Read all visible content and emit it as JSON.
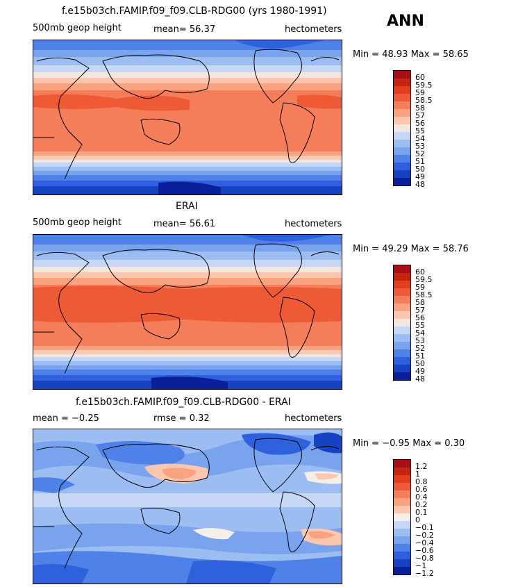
{
  "season": "ANN",
  "panels": [
    {
      "title": "f.e15b03ch.FAMIP.f09_f09.CLB-RDG00 (yrs 1980-1991)",
      "left_label": "500mb geop height",
      "center_label": "mean=  56.37",
      "right_label": "hectometers",
      "stats": "Min =  48.93  Max =  58.65",
      "colorbar_labels": [
        "60",
        "59.5",
        "59",
        "58.5",
        "58",
        "57",
        "56",
        "55",
        "54",
        "53",
        "52",
        "51",
        "50",
        "49",
        "48"
      ],
      "colorbar_colors": [
        "#a50f15",
        "#c4250c",
        "#e03e1c",
        "#ee5a36",
        "#f47d5a",
        "#f9a381",
        "#fbc7ae",
        "#f3e6de",
        "#c4d7f5",
        "#9cbdf2",
        "#7aa3ee",
        "#4f82e8",
        "#2f61dc",
        "#1642c4",
        "#0a1f9a"
      ]
    },
    {
      "title": "ERAI",
      "left_label": "500mb geop height",
      "center_label": "mean=  56.61",
      "right_label": "hectometers",
      "stats": "Min =  49.29  Max =  58.76",
      "colorbar_labels": [
        "60",
        "59.5",
        "59",
        "58.5",
        "58",
        "57",
        "56",
        "55",
        "54",
        "53",
        "52",
        "51",
        "50",
        "49",
        "48"
      ],
      "colorbar_colors": [
        "#a50f15",
        "#c4250c",
        "#e03e1c",
        "#ee5a36",
        "#f47d5a",
        "#f9a381",
        "#fbc7ae",
        "#f3e6de",
        "#c4d7f5",
        "#9cbdf2",
        "#7aa3ee",
        "#4f82e8",
        "#2f61dc",
        "#1642c4",
        "#0a1f9a"
      ]
    },
    {
      "title": "f.e15b03ch.FAMIP.f09_f09.CLB-RDG00 - ERAI",
      "left_label": "mean =  −0.25",
      "center_label": "rmse =    0.32",
      "right_label": "hectometers",
      "stats": "Min =  −0.95  Max =    0.30",
      "colorbar_labels": [
        "1.2",
        "1",
        "0.8",
        "0.6",
        "0.4",
        "0.2",
        "0.1",
        "0",
        "−0.1",
        "−0.2",
        "−0.4",
        "−0.6",
        "−0.8",
        "−1",
        "−1.2"
      ],
      "colorbar_colors": [
        "#a50f15",
        "#c4250c",
        "#e03e1c",
        "#ee5a36",
        "#f47d5a",
        "#f9a381",
        "#fbc7ae",
        "#f5efe9",
        "#c4d7f5",
        "#9cbdf2",
        "#7aa3ee",
        "#4f82e8",
        "#2f61dc",
        "#1642c4",
        "#0a1f9a"
      ]
    }
  ]
}
